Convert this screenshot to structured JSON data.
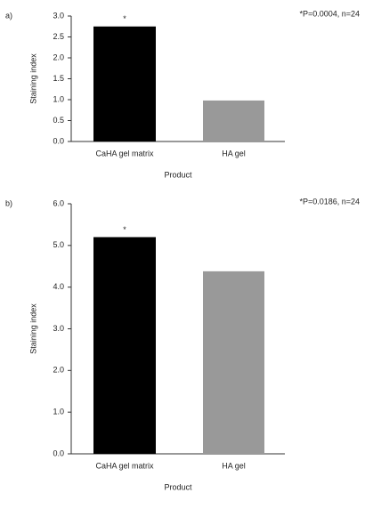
{
  "chart_data": [
    {
      "type": "bar",
      "panel_label": "a)",
      "annotation": "*P=0.0004, n=24",
      "marker": "*",
      "categories": [
        "CaHA gel matrix",
        "HA gel"
      ],
      "values": [
        2.75,
        0.98
      ],
      "colors": [
        "#000000",
        "#999999"
      ],
      "xlabel": "Product",
      "ylabel": "Staining index",
      "ylim": [
        0,
        3
      ],
      "yticks": [
        {
          "value": 0,
          "label": "0.0"
        },
        0.5,
        {
          "value": 1,
          "label": "1.0"
        },
        1.5,
        {
          "value": 2,
          "label": "2.0"
        },
        2.5,
        {
          "value": 3,
          "label": "3.0"
        }
      ]
    },
    {
      "type": "bar",
      "panel_label": "b)",
      "annotation": "*P=0.0186, n=24",
      "marker": "*",
      "categories": [
        "CaHA gel matrix",
        "HA gel"
      ],
      "values": [
        5.2,
        4.38
      ],
      "colors": [
        "#000000",
        "#999999"
      ],
      "xlabel": "Product",
      "ylabel": "Staining index",
      "ylim": [
        0,
        6
      ],
      "yticks": [
        {
          "value": 0,
          "label": "0.0"
        },
        {
          "value": 1,
          "label": "1.0"
        },
        {
          "value": 2,
          "label": "2.0"
        },
        {
          "value": 3,
          "label": "3.0"
        },
        {
          "value": 4,
          "label": "4.0"
        },
        {
          "value": 5,
          "label": "5.0"
        },
        {
          "value": 6,
          "label": "6.0"
        }
      ]
    }
  ]
}
